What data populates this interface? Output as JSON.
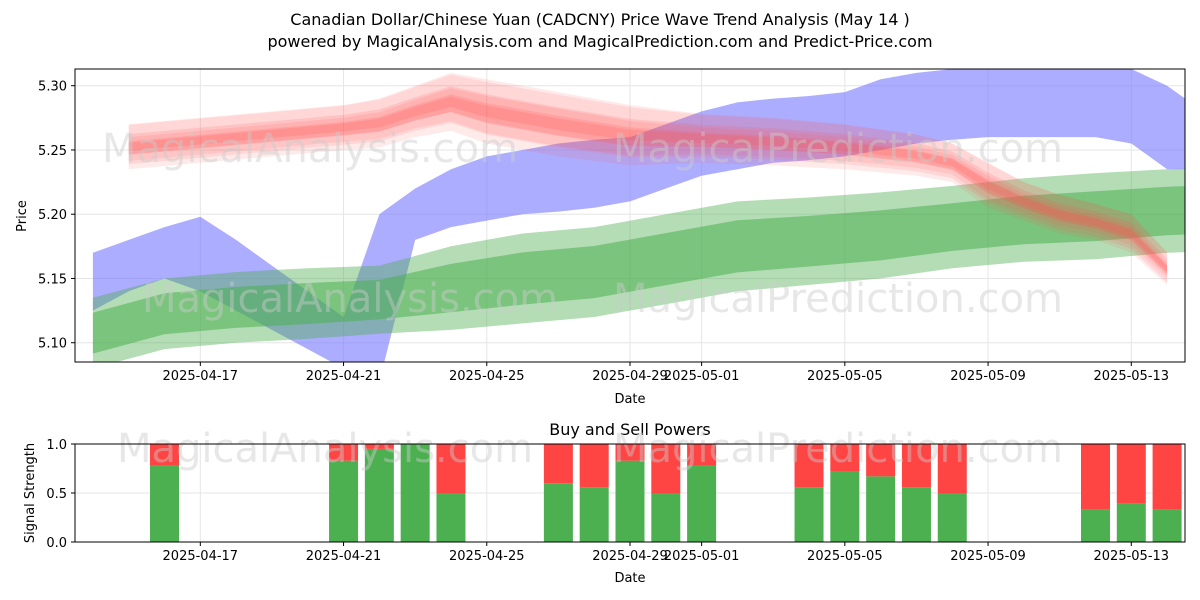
{
  "title_line1": "Canadian Dollar/Chinese Yuan (CADCNY) Price Wave Trend Analysis (May 14 )",
  "title_line2": "powered by MagicalAnalysis.com and MagicalPrediction.com and Predict-Price.com",
  "watermarks": [
    "MagicalAnalysis.com",
    "MagicalPrediction.com"
  ],
  "colors": {
    "sell": "#ff4444",
    "buy": "#4caf50",
    "blue_band": "#7777ff",
    "green_band": "#4caf50",
    "red_band": "#ff5555"
  },
  "chart_data": [
    {
      "type": "area",
      "title": "",
      "xlabel": "Date",
      "ylabel": "Price",
      "x_ticks": [
        "2025-04-17",
        "2025-04-21",
        "2025-04-25",
        "2025-04-29",
        "2025-05-01",
        "2025-05-05",
        "2025-05-09",
        "2025-05-13"
      ],
      "y_ticks": [
        "5.10",
        "5.15",
        "5.20",
        "5.25",
        "5.30"
      ],
      "ylim": [
        5.085,
        5.313
      ],
      "xlim": [
        "2025-04-14",
        "2025-05-15"
      ],
      "grid": true,
      "series": [
        {
          "color": "blue",
          "x": [
            "2025-04-14",
            "2025-04-15",
            "2025-04-16",
            "2025-04-17",
            "2025-04-18",
            "2025-04-19",
            "2025-04-20",
            "2025-04-21",
            "2025-04-22",
            "2025-04-23",
            "2025-04-24",
            "2025-04-25",
            "2025-04-26",
            "2025-04-27",
            "2025-04-28",
            "2025-04-29",
            "2025-04-30",
            "2025-05-01",
            "2025-05-02",
            "2025-05-03",
            "2025-05-04",
            "2025-05-05",
            "2025-05-06",
            "2025-05-07",
            "2025-05-08",
            "2025-05-09",
            "2025-05-10",
            "2025-05-11",
            "2025-05-12",
            "2025-05-13",
            "2025-05-14",
            "2025-05-15"
          ],
          "upper": [
            5.17,
            5.18,
            5.19,
            5.198,
            5.18,
            5.16,
            5.14,
            5.12,
            5.2,
            5.22,
            5.235,
            5.245,
            5.25,
            5.255,
            5.258,
            5.26,
            5.27,
            5.28,
            5.287,
            5.29,
            5.292,
            5.295,
            5.305,
            5.31,
            5.313,
            5.313,
            5.313,
            5.313,
            5.313,
            5.313,
            5.3,
            5.28
          ],
          "lower": [
            5.125,
            5.14,
            5.15,
            5.14,
            5.125,
            5.11,
            5.095,
            5.08,
            5.07,
            5.18,
            5.19,
            5.195,
            5.2,
            5.202,
            5.205,
            5.21,
            5.22,
            5.23,
            5.235,
            5.24,
            5.242,
            5.245,
            5.25,
            5.255,
            5.258,
            5.26,
            5.26,
            5.26,
            5.26,
            5.255,
            5.235,
            5.235
          ]
        },
        {
          "color": "green",
          "x": [
            "2025-04-14",
            "2025-04-16",
            "2025-04-18",
            "2025-04-20",
            "2025-04-22",
            "2025-04-24",
            "2025-04-26",
            "2025-04-28",
            "2025-04-30",
            "2025-05-02",
            "2025-05-04",
            "2025-05-06",
            "2025-05-08",
            "2025-05-10",
            "2025-05-12",
            "2025-05-14",
            "2025-05-15"
          ],
          "upper": [
            5.135,
            5.15,
            5.155,
            5.158,
            5.16,
            5.175,
            5.185,
            5.19,
            5.2,
            5.21,
            5.213,
            5.217,
            5.222,
            5.228,
            5.232,
            5.235,
            5.236
          ],
          "lower": [
            5.08,
            5.095,
            5.1,
            5.103,
            5.107,
            5.11,
            5.115,
            5.12,
            5.13,
            5.14,
            5.145,
            5.15,
            5.158,
            5.163,
            5.165,
            5.17,
            5.171
          ]
        },
        {
          "color": "red",
          "x": [
            "2025-04-15",
            "2025-04-17",
            "2025-04-19",
            "2025-04-21",
            "2025-04-22",
            "2025-04-23",
            "2025-04-24",
            "2025-04-25",
            "2025-04-27",
            "2025-04-29",
            "2025-05-01",
            "2025-05-03",
            "2025-05-05",
            "2025-05-07",
            "2025-05-08",
            "2025-05-09",
            "2025-05-10",
            "2025-05-11",
            "2025-05-12",
            "2025-05-13",
            "2025-05-14"
          ],
          "upper": [
            5.27,
            5.275,
            5.28,
            5.285,
            5.29,
            5.3,
            5.31,
            5.305,
            5.295,
            5.285,
            5.278,
            5.275,
            5.27,
            5.262,
            5.255,
            5.24,
            5.225,
            5.215,
            5.208,
            5.2,
            5.17
          ],
          "lower": [
            5.235,
            5.24,
            5.245,
            5.25,
            5.252,
            5.26,
            5.265,
            5.255,
            5.245,
            5.238,
            5.24,
            5.238,
            5.235,
            5.23,
            5.225,
            5.205,
            5.195,
            5.185,
            5.18,
            5.17,
            5.145
          ]
        }
      ]
    },
    {
      "type": "bar",
      "title": "Buy and Sell Powers",
      "xlabel": "Date",
      "ylabel": "Signal Strength",
      "x_ticks": [
        "2025-04-17",
        "2025-04-21",
        "2025-04-25",
        "2025-04-29",
        "2025-05-01",
        "2025-05-05",
        "2025-05-09",
        "2025-05-13"
      ],
      "y_ticks": [
        "0.0",
        "0.5",
        "1.0"
      ],
      "ylim": [
        0,
        1
      ],
      "xlim": [
        "2025-04-14",
        "2025-05-15"
      ],
      "grid": true,
      "categories": [
        "2025-04-16",
        "2025-04-21",
        "2025-04-22",
        "2025-04-23",
        "2025-04-24",
        "2025-04-27",
        "2025-04-28",
        "2025-04-29",
        "2025-04-30",
        "2025-05-01",
        "2025-05-04",
        "2025-05-05",
        "2025-05-06",
        "2025-05-07",
        "2025-05-08",
        "2025-05-12",
        "2025-05-13",
        "2025-05-14"
      ],
      "series": [
        {
          "name": "",
          "values": [
            0.78,
            0.83,
            0.95,
            1.0,
            0.5,
            0.6,
            0.56,
            0.83,
            0.5,
            0.78,
            0.56,
            0.72,
            0.67,
            0.56,
            0.5,
            0.33,
            0.39,
            0.33
          ]
        },
        {
          "name": "",
          "values": [
            0.22,
            0.17,
            0.05,
            0.0,
            0.5,
            0.4,
            0.44,
            0.17,
            0.5,
            0.22,
            0.44,
            0.28,
            0.33,
            0.44,
            0.5,
            0.67,
            0.61,
            0.67
          ]
        }
      ]
    }
  ]
}
